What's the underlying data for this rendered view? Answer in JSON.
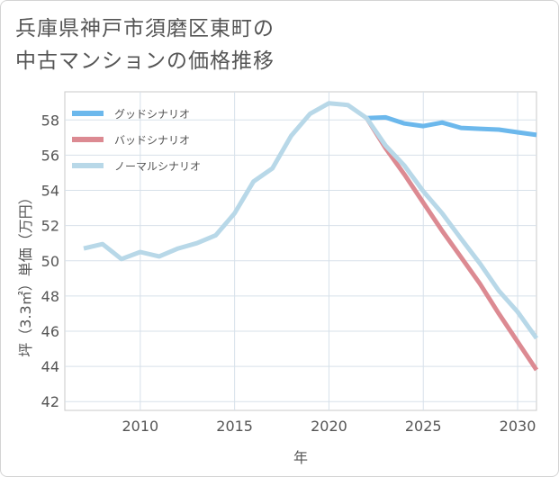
{
  "title_lines": [
    "兵庫県神戸市須磨区東町の",
    "中古マンションの価格推移"
  ],
  "chart_data": {
    "type": "line",
    "title": "兵庫県神戸市須磨区東町の中古マンションの価格推移",
    "xlabel": "年",
    "ylabel": "坪（3.3㎡）単価（万円）",
    "xlim": [
      2006,
      2031
    ],
    "ylim": [
      41.5,
      59.6
    ],
    "x_ticks": [
      2010,
      2015,
      2020,
      2025,
      2030
    ],
    "y_ticks": [
      42,
      44,
      46,
      48,
      50,
      52,
      54,
      56,
      58
    ],
    "grid": true,
    "legend_position": "top-left",
    "series": [
      {
        "name": "グッドシナリオ",
        "color": "#6cb8ec",
        "x": [
          2022,
          2023,
          2024,
          2025,
          2026,
          2027,
          2028,
          2029,
          2030,
          2031
        ],
        "values": [
          58.1,
          58.15,
          57.8,
          57.65,
          57.85,
          57.55,
          57.5,
          57.45,
          57.3,
          57.15
        ]
      },
      {
        "name": "バッドシナリオ",
        "color": "#dc8a92",
        "x": [
          2022,
          2023,
          2024,
          2025,
          2026,
          2027,
          2028,
          2029,
          2030,
          2031
        ],
        "values": [
          58.1,
          56.4,
          54.9,
          53.3,
          51.7,
          50.2,
          48.7,
          47.0,
          45.4,
          43.8
        ]
      },
      {
        "name": "ノーマルシナリオ",
        "color": "#b8d8e8",
        "x": [
          2007,
          2008,
          2009,
          2010,
          2011,
          2012,
          2013,
          2014,
          2015,
          2016,
          2017,
          2018,
          2019,
          2020,
          2021,
          2022,
          2023,
          2024,
          2025,
          2026,
          2027,
          2028,
          2029,
          2030,
          2031
        ],
        "values": [
          50.7,
          50.95,
          50.1,
          50.5,
          50.25,
          50.7,
          51.0,
          51.45,
          52.7,
          54.5,
          55.25,
          57.1,
          58.35,
          58.95,
          58.85,
          58.1,
          56.55,
          55.4,
          53.95,
          52.7,
          51.25,
          49.85,
          48.3,
          47.1,
          45.6
        ]
      }
    ]
  }
}
